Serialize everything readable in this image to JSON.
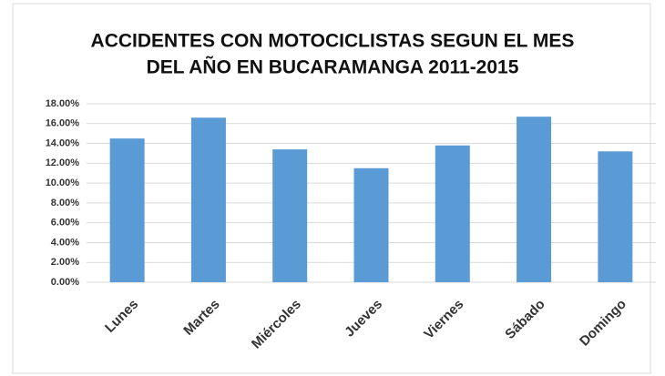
{
  "chart_data": {
    "type": "bar",
    "title": [
      "ACCIDENTES CON MOTOCICLISTAS SEGUN EL MES",
      "DEL AÑO EN BUCARAMANGA 2011-2015"
    ],
    "categories": [
      "Lunes",
      "Martes",
      "Miércoles",
      "Jueves",
      "Viernes",
      "Sábado",
      "Domingo"
    ],
    "values": [
      14.5,
      16.6,
      13.4,
      11.5,
      13.8,
      16.7,
      13.2
    ],
    "color": "#5b9bd5",
    "ylim": [
      0,
      18
    ],
    "yticks": [
      {
        "value": 0,
        "label": "0.00%"
      },
      {
        "value": 2,
        "label": "2.00%"
      },
      {
        "value": 4,
        "label": "4.00%"
      },
      {
        "value": 6,
        "label": "6.00%"
      },
      {
        "value": 8,
        "label": "8.00%"
      },
      {
        "value": 10,
        "label": "10.00%"
      },
      {
        "value": 12,
        "label": "12.00%"
      },
      {
        "value": 14,
        "label": "14.00%"
      },
      {
        "value": 16,
        "label": "16.00%"
      },
      {
        "value": 18,
        "label": "18.00%"
      }
    ],
    "grid": true
  }
}
